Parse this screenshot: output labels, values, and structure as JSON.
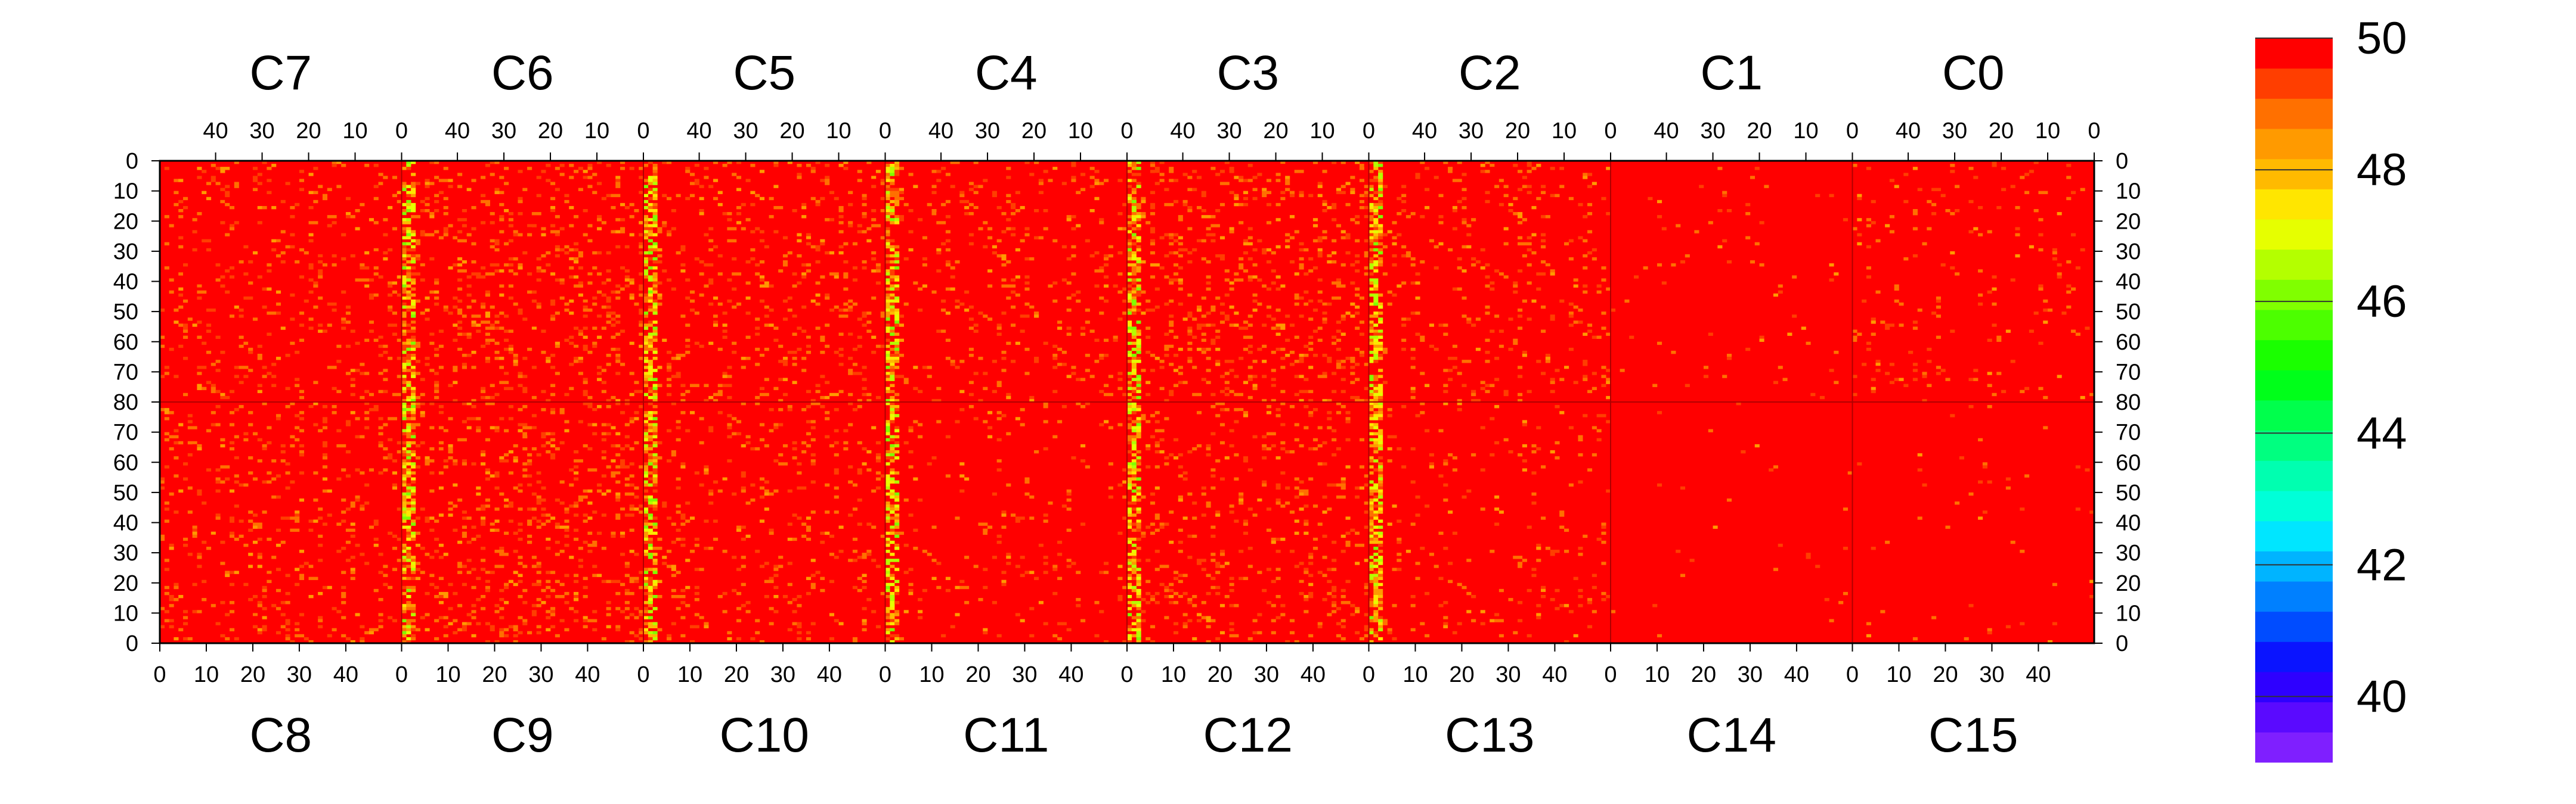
{
  "chart_data": {
    "type": "heatmap",
    "top_chips": [
      "C7",
      "C6",
      "C5",
      "C4",
      "C3",
      "C2",
      "C1",
      "C0"
    ],
    "bottom_chips": [
      "C8",
      "C9",
      "C10",
      "C11",
      "C12",
      "C13",
      "C14",
      "C15"
    ],
    "x_ticks_top": [
      "40",
      "30",
      "20",
      "10",
      "0"
    ],
    "x_ticks_bottom": [
      "0",
      "10",
      "20",
      "30",
      "40"
    ],
    "y_ticks_upper": [
      "0",
      "10",
      "20",
      "30",
      "40",
      "50",
      "60",
      "70",
      "80"
    ],
    "y_ticks_lower": [
      "70",
      "60",
      "50",
      "40",
      "30",
      "20",
      "10",
      "0"
    ],
    "columns_per_chip": 52,
    "rows_per_half": 80,
    "z_range": [
      39,
      50
    ],
    "colorbar_ticks": [
      "40",
      "42",
      "44",
      "46",
      "48",
      "50"
    ],
    "colorbar_colors": [
      "#7F1FFF",
      "#5A0AFF",
      "#2E00FF",
      "#0A14FF",
      "#004CFF",
      "#0080FF",
      "#00B4FF",
      "#00E6FF",
      "#00FFD8",
      "#00FFB0",
      "#00FF80",
      "#00FF4C",
      "#00FF1A",
      "#1AFF00",
      "#4CFF00",
      "#80FF00",
      "#B4FF00",
      "#E6FF00",
      "#FFE600",
      "#FFBA00",
      "#FF9A00",
      "#FF7000",
      "#FF3E00",
      "#FF0000"
    ],
    "dominant_value": 50,
    "hot_band_values_min": 46,
    "description_grid": "pixel map values mostly at 50 with lower-value columns near chip boundaries"
  }
}
